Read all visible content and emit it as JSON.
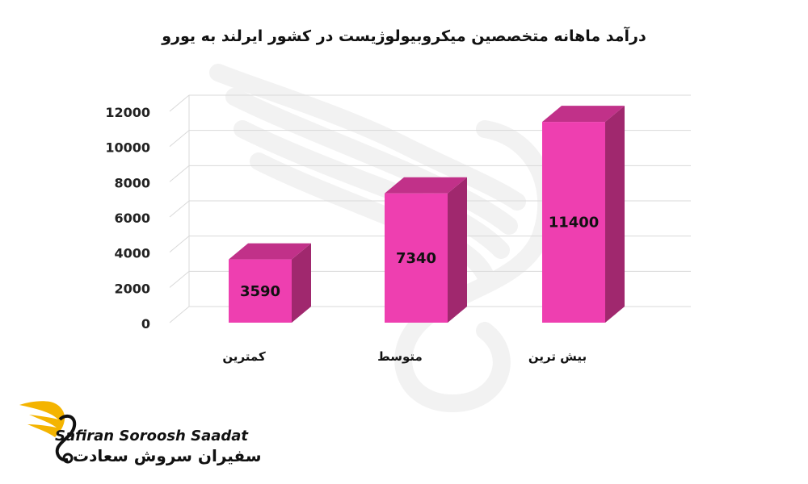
{
  "title": "درآمد ماهانه متخصصین میکروبیولوژیست در کشور ایرلند به یورو",
  "colors": {
    "bar_front": "#ee3fb0",
    "bar_side": "#a0286e",
    "bar_top": "#c13189",
    "grid": "#d9d9d9",
    "watermark": "#f2f2f2",
    "logo_wing": "#f4b400"
  },
  "chart_data": {
    "type": "bar",
    "title": "درآمد ماهانه متخصصین میکروبیولوژیست در کشور ایرلند به یورو",
    "categories": [
      "کمترین",
      "متوسط",
      "بیش ترین"
    ],
    "values": [
      3590,
      7340,
      11400
    ],
    "yticks": [
      0,
      2000,
      4000,
      6000,
      8000,
      10000,
      12000
    ],
    "ylim": [
      0,
      12000
    ],
    "xlabel": "",
    "ylabel": "",
    "grid": true,
    "style": "3d-column",
    "data_labels": true
  },
  "logo": {
    "name_en": "Safiran Soroosh Saadat",
    "name_fa": "سفیران سروش سعادت",
    "icon": "golden-wing-bird-icon"
  },
  "watermark": {
    "icon": "wing-watermark-icon"
  }
}
